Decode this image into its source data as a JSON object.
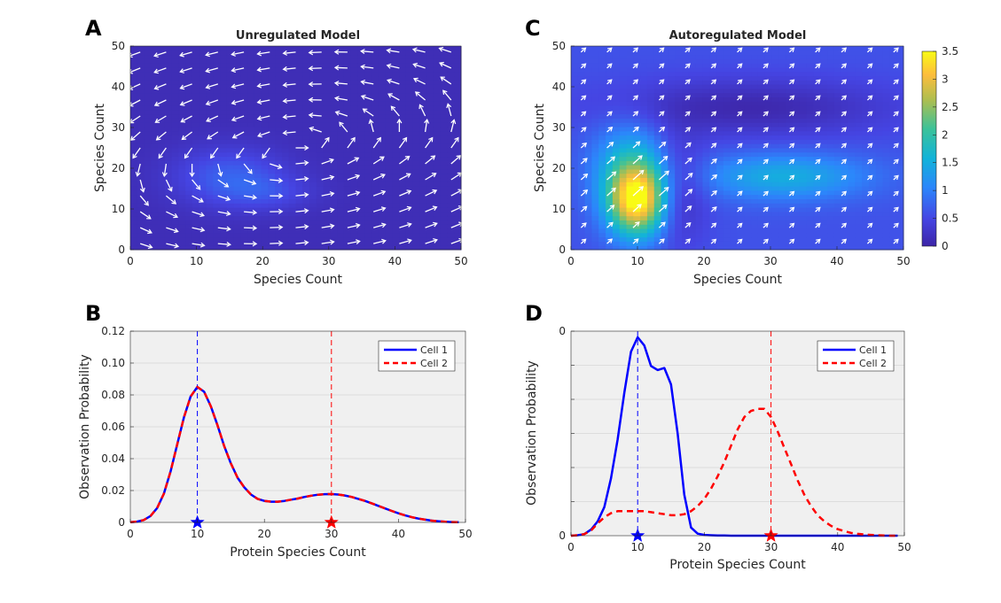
{
  "panels": {
    "A": {
      "label": "A",
      "title": "Unregulated Model",
      "xlabel": "Species Count",
      "ylabel": "Species Count"
    },
    "C": {
      "label": "C",
      "title": "Autoregulated Model",
      "xlabel": "Species Count",
      "ylabel": "Species Count"
    },
    "B": {
      "label": "B",
      "xlabel": "Protein Species Count",
      "ylabel": "Observation Probability"
    },
    "D": {
      "label": "D",
      "xlabel": "Protein Species Count",
      "ylabel": "Observation Probability"
    }
  },
  "colorbar": {
    "ticks": [
      "0",
      "0.5",
      "1",
      "1.5",
      "2",
      "2.5",
      "3",
      "3.5"
    ],
    "range": [
      0,
      3.5
    ]
  },
  "colors": {
    "cell1": "#0000ff",
    "cell2": "#ff0000",
    "axes_bg": "#f0f0f0",
    "heat_low": "#3d26a8",
    "heat_high": "#f9fb15"
  },
  "chart_data": [
    {
      "id": "A",
      "type": "heatmap",
      "title": "Unregulated Model",
      "xlabel": "Species Count",
      "ylabel": "Species Count",
      "xlim": [
        0,
        50
      ],
      "ylim": [
        0,
        50
      ],
      "xticks": [
        "0",
        "10",
        "20",
        "30",
        "40",
        "50"
      ],
      "yticks": [
        "0",
        "10",
        "20",
        "30",
        "40",
        "50"
      ],
      "overlay": "white velocity arrows (quiver)",
      "colormap": "parula",
      "clim": [
        0,
        3.5
      ],
      "blobs": [
        {
          "x": 15,
          "y": 18,
          "value": 0.6,
          "sx": 6,
          "sy": 5
        },
        {
          "x": 21,
          "y": 14,
          "value": 0.3,
          "sx": 5,
          "sy": 3
        }
      ],
      "background_value": 0.12
    },
    {
      "id": "C",
      "type": "heatmap",
      "title": "Autoregulated Model",
      "xlabel": "Species Count",
      "ylabel": "Species Count",
      "xlim": [
        0,
        50
      ],
      "ylim": [
        0,
        50
      ],
      "xticks": [
        "0",
        "10",
        "20",
        "30",
        "40",
        "50"
      ],
      "yticks": [
        "0",
        "10",
        "20",
        "30",
        "40",
        "50"
      ],
      "overlay": "white velocity arrows (quiver)",
      "colormap": "parula",
      "clim": [
        0,
        3.5
      ],
      "background_value": 0.6,
      "blobs": [
        {
          "x": 10,
          "y": 12,
          "value": 2.6,
          "sx": 3,
          "sy": 6
        },
        {
          "x": 9,
          "y": 20,
          "value": 1.0,
          "sx": 4,
          "sy": 8
        },
        {
          "x": 32,
          "y": 18,
          "value": 0.9,
          "sx": 9,
          "sy": 4
        }
      ],
      "low_regions": [
        {
          "x": 27,
          "y": 35,
          "sx": 15,
          "sy": 5
        },
        {
          "x": 16,
          "y": 15,
          "sx": 3,
          "sy": 9
        }
      ]
    },
    {
      "id": "B",
      "type": "line",
      "xlabel": "Protein Species Count",
      "ylabel": "Observation Probability",
      "xlim": [
        0,
        50
      ],
      "ylim": [
        0,
        0.12
      ],
      "xticks": [
        "0",
        "10",
        "20",
        "30",
        "40",
        "50"
      ],
      "yticks": [
        "0",
        "0.02",
        "0.04",
        "0.06",
        "0.08",
        "0.10",
        "0.12"
      ],
      "grid": "horizontal",
      "legend": "top-right",
      "x": [
        0,
        1,
        2,
        3,
        4,
        5,
        6,
        7,
        8,
        9,
        10,
        11,
        12,
        13,
        14,
        15,
        16,
        17,
        18,
        19,
        20,
        21,
        22,
        23,
        24,
        25,
        26,
        27,
        28,
        29,
        30,
        31,
        32,
        33,
        34,
        35,
        36,
        37,
        38,
        39,
        40,
        41,
        42,
        43,
        44,
        45,
        46,
        47,
        48,
        49
      ],
      "series": [
        {
          "name": "Cell 1",
          "style": "solid",
          "values": [
            0.0001,
            0.0005,
            0.0015,
            0.004,
            0.009,
            0.018,
            0.032,
            0.049,
            0.066,
            0.079,
            0.085,
            0.082,
            0.073,
            0.061,
            0.048,
            0.037,
            0.028,
            0.022,
            0.0175,
            0.0148,
            0.0135,
            0.013,
            0.013,
            0.0135,
            0.0143,
            0.015,
            0.016,
            0.0168,
            0.0174,
            0.0177,
            0.0178,
            0.0175,
            0.0169,
            0.016,
            0.0148,
            0.0135,
            0.012,
            0.0104,
            0.0088,
            0.0072,
            0.0057,
            0.0044,
            0.0033,
            0.0024,
            0.0017,
            0.0011,
            0.0007,
            0.0004,
            0.0002,
            0.0001
          ]
        },
        {
          "name": "Cell 2",
          "style": "dashed",
          "values": [
            0.0001,
            0.0005,
            0.0015,
            0.004,
            0.009,
            0.018,
            0.032,
            0.049,
            0.066,
            0.079,
            0.085,
            0.082,
            0.073,
            0.061,
            0.048,
            0.037,
            0.028,
            0.022,
            0.0175,
            0.0148,
            0.0135,
            0.013,
            0.013,
            0.0135,
            0.0143,
            0.015,
            0.016,
            0.0168,
            0.0174,
            0.0177,
            0.0178,
            0.0175,
            0.0169,
            0.016,
            0.0148,
            0.0135,
            0.012,
            0.0104,
            0.0088,
            0.0072,
            0.0057,
            0.0044,
            0.0033,
            0.0024,
            0.0017,
            0.0011,
            0.0007,
            0.0004,
            0.0002,
            0.0001
          ]
        }
      ],
      "vlines": [
        {
          "x": 10,
          "series": "Cell 1"
        },
        {
          "x": 30,
          "series": "Cell 2"
        }
      ],
      "markers": [
        {
          "x": 10,
          "y": 0,
          "shape": "star",
          "series": "Cell 1"
        },
        {
          "x": 30,
          "y": 0,
          "shape": "star",
          "series": "Cell 2"
        }
      ]
    },
    {
      "id": "D",
      "type": "line",
      "xlabel": "Protein Species Count",
      "ylabel": "Observation Probability",
      "xlim": [
        0,
        50
      ],
      "ylim": [
        0,
        1
      ],
      "xticks": [
        "0",
        "10",
        "20",
        "30",
        "40",
        "50"
      ],
      "yticks": [
        "0",
        "0"
      ],
      "grid": "horizontal",
      "legend": "top-right",
      "x": [
        0,
        1,
        2,
        3,
        4,
        5,
        6,
        7,
        8,
        9,
        10,
        11,
        12,
        13,
        14,
        15,
        16,
        17,
        18,
        19,
        20,
        21,
        22,
        23,
        24,
        25,
        26,
        27,
        28,
        29,
        30,
        31,
        32,
        33,
        34,
        35,
        36,
        37,
        38,
        39,
        40,
        41,
        42,
        43,
        44,
        45,
        46,
        47,
        48,
        49
      ],
      "series": [
        {
          "name": "Cell 1",
          "style": "solid",
          "values": [
            0,
            0.002,
            0.008,
            0.03,
            0.07,
            0.14,
            0.28,
            0.47,
            0.7,
            0.9,
            0.97,
            0.93,
            0.83,
            0.81,
            0.82,
            0.74,
            0.5,
            0.2,
            0.04,
            0.01,
            0.004,
            0.002,
            0.001,
            0.001,
            0.0,
            0,
            0,
            0,
            0,
            0,
            0,
            0,
            0,
            0,
            0,
            0,
            0,
            0,
            0,
            0,
            0,
            0,
            0,
            0,
            0,
            0,
            0,
            0,
            0,
            0
          ]
        },
        {
          "name": "Cell 2",
          "style": "dashed",
          "values": [
            0,
            0.002,
            0.008,
            0.025,
            0.06,
            0.09,
            0.11,
            0.12,
            0.12,
            0.12,
            0.12,
            0.12,
            0.115,
            0.11,
            0.105,
            0.1,
            0.1,
            0.105,
            0.12,
            0.145,
            0.18,
            0.23,
            0.29,
            0.36,
            0.44,
            0.52,
            0.58,
            0.61,
            0.62,
            0.62,
            0.58,
            0.51,
            0.43,
            0.35,
            0.27,
            0.2,
            0.145,
            0.1,
            0.07,
            0.048,
            0.032,
            0.022,
            0.014,
            0.009,
            0.006,
            0.004,
            0.002,
            0.001,
            0,
            0
          ]
        }
      ],
      "vlines": [
        {
          "x": 10,
          "series": "Cell 1"
        },
        {
          "x": 30,
          "series": "Cell 2"
        }
      ],
      "markers": [
        {
          "x": 10,
          "y": 0,
          "shape": "star",
          "series": "Cell 1"
        },
        {
          "x": 30,
          "y": 0,
          "shape": "star",
          "series": "Cell 2"
        }
      ]
    }
  ]
}
